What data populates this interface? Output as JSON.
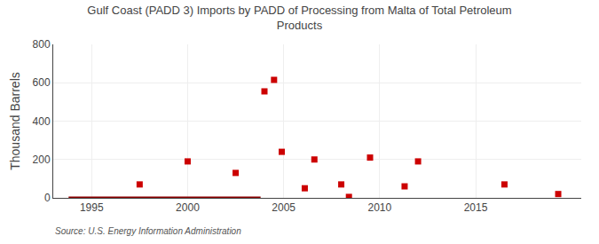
{
  "chart_data": {
    "type": "scatter",
    "title": "Gulf Coast (PADD 3) Imports by PADD of Processing from Malta of Total Petroleum\nProducts",
    "ylabel": "Thousand Barrels",
    "annotations": [
      "Source: U.S. Energy Information Administration"
    ],
    "series": [
      {
        "type": "scatter",
        "color": "#cc0000",
        "marker": "square",
        "x": [
          1997.5,
          2000.0,
          2002.5,
          2004.0,
          2004.5,
          2004.9,
          2006.1,
          2006.6,
          2008.0,
          2008.4,
          2009.5,
          2011.3,
          2012.0,
          2016.5,
          2019.3
        ],
        "values": [
          70,
          190,
          130,
          555,
          615,
          240,
          50,
          200,
          70,
          5,
          210,
          60,
          190,
          70,
          20
        ]
      },
      {
        "type": "line",
        "color": "#8b0000",
        "line_style": "solid",
        "x": [
          1993.8,
          2003.8
        ],
        "values": [
          0,
          0
        ]
      }
    ],
    "xlim": [
      1993.0,
      2020.5
    ],
    "xticks": [
      1995,
      2000,
      2005,
      2010,
      2015
    ],
    "ylim": [
      0,
      800
    ],
    "yticks": [
      0,
      200,
      400,
      600,
      800
    ],
    "grid": true
  }
}
